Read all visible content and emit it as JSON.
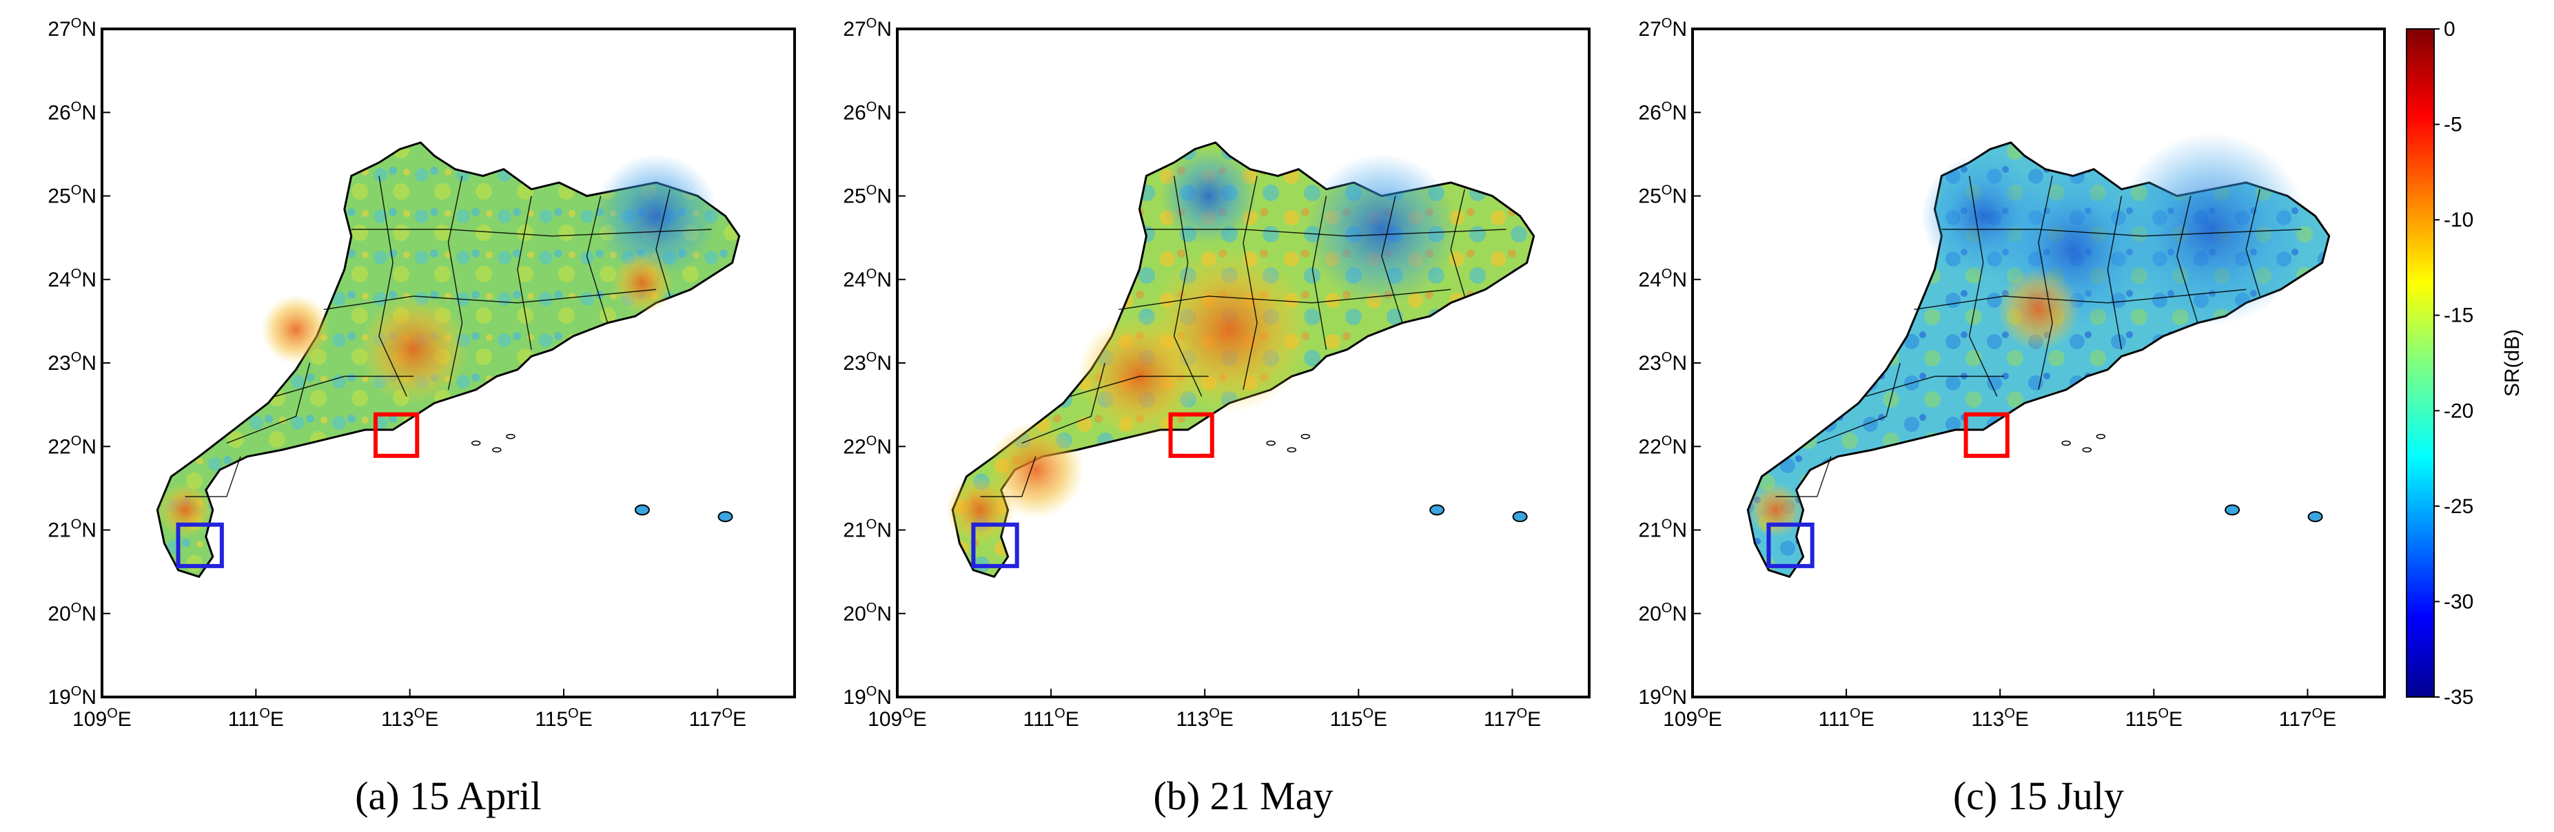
{
  "panels": [
    {
      "caption": "(a) 15 April",
      "y_ticks": [
        {
          "deg": "27",
          "hemi": "N"
        },
        {
          "deg": "26",
          "hemi": "N"
        },
        {
          "deg": "25",
          "hemi": "N"
        },
        {
          "deg": "24",
          "hemi": "N"
        },
        {
          "deg": "23",
          "hemi": "N"
        },
        {
          "deg": "22",
          "hemi": "N"
        },
        {
          "deg": "21",
          "hemi": "N"
        },
        {
          "deg": "20",
          "hemi": "N"
        },
        {
          "deg": "19",
          "hemi": "N"
        }
      ],
      "x_ticks": [
        {
          "deg": "109",
          "hemi": "E"
        },
        {
          "deg": "111",
          "hemi": "E"
        },
        {
          "deg": "113",
          "hemi": "E"
        },
        {
          "deg": "115",
          "hemi": "E"
        },
        {
          "deg": "117",
          "hemi": "E"
        }
      ],
      "tone": "moderate"
    },
    {
      "caption": "(b) 21 May",
      "y_ticks": [
        {
          "deg": "27",
          "hemi": "N"
        },
        {
          "deg": "26",
          "hemi": "N"
        },
        {
          "deg": "25",
          "hemi": "N"
        },
        {
          "deg": "24",
          "hemi": "N"
        },
        {
          "deg": "23",
          "hemi": "N"
        },
        {
          "deg": "22",
          "hemi": "N"
        },
        {
          "deg": "21",
          "hemi": "N"
        },
        {
          "deg": "20",
          "hemi": "N"
        },
        {
          "deg": "19",
          "hemi": "N"
        }
      ],
      "x_ticks": [
        {
          "deg": "109",
          "hemi": "E"
        },
        {
          "deg": "111",
          "hemi": "E"
        },
        {
          "deg": "113",
          "hemi": "E"
        },
        {
          "deg": "115",
          "hemi": "E"
        },
        {
          "deg": "117",
          "hemi": "E"
        }
      ],
      "tone": "warm-south"
    },
    {
      "caption": "(c) 15 July",
      "y_ticks": [
        {
          "deg": "27",
          "hemi": "N"
        },
        {
          "deg": "26",
          "hemi": "N"
        },
        {
          "deg": "25",
          "hemi": "N"
        },
        {
          "deg": "24",
          "hemi": "N"
        },
        {
          "deg": "23",
          "hemi": "N"
        },
        {
          "deg": "22",
          "hemi": "N"
        },
        {
          "deg": "21",
          "hemi": "N"
        },
        {
          "deg": "20",
          "hemi": "N"
        },
        {
          "deg": "19",
          "hemi": "N"
        }
      ],
      "x_ticks": [
        {
          "deg": "109",
          "hemi": "E"
        },
        {
          "deg": "111",
          "hemi": "E"
        },
        {
          "deg": "113",
          "hemi": "E"
        },
        {
          "deg": "115",
          "hemi": "E"
        },
        {
          "deg": "117",
          "hemi": "E"
        }
      ],
      "tone": "cool-north"
    }
  ],
  "colorbar": {
    "label": "SR(dB)",
    "ticks": [
      "0",
      "-5",
      "-10",
      "-15",
      "-20",
      "-25",
      "-30",
      "-35"
    ],
    "min": -35,
    "max": 0,
    "colormap": "jet"
  },
  "boxes": [
    {
      "name": "red-box",
      "color": "#ff0000"
    },
    {
      "name": "blue-box",
      "color": "#2222dd"
    }
  ]
}
